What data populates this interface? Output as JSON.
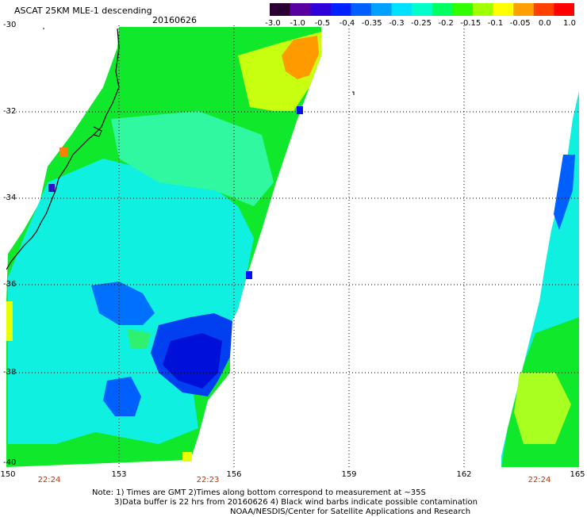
{
  "title": "ASCAT 25KM MLE-1 descending",
  "date": "20160626",
  "colorbar": {
    "ticks": [
      "-3.0",
      "-1.0",
      "-0.5",
      "-0.4",
      "-0.35",
      "-0.3",
      "-0.25",
      "-0.2",
      "-0.15",
      "-0.1",
      "-0.05",
      "0.0",
      "1.0"
    ],
    "colors": [
      "#2a0030",
      "#5a00a0",
      "#3000d8",
      "#0020ff",
      "#0060ff",
      "#00a0ff",
      "#00e0ff",
      "#00ffc8",
      "#00ff60",
      "#30ff00",
      "#a0ff00",
      "#ffff00",
      "#ffa000",
      "#ff4000",
      "#ff0000"
    ]
  },
  "axes": {
    "lat_labels": [
      "-30",
      "-32",
      "-34",
      "-36",
      "-38",
      "-40"
    ],
    "lon_labels": [
      "150",
      "153",
      "156",
      "159",
      "162",
      "165"
    ]
  },
  "times": [
    "22:24",
    "22:23",
    "22:24"
  ],
  "notes": {
    "line1": "Note: 1) Times are GMT 2)Times along bottom correspond to measurement at ~35S",
    "line2": "3)Data buffer is 22 hrs from 20160626 4) Black wind barbs indicate possible contamination",
    "line3": "NOAA/NESDIS/Center for Satellite Applications and Research"
  },
  "field_colors": {
    "green": "#10e82c",
    "lightgreen": "#30f870",
    "cyan": "#10f0e0",
    "teal": "#00e8b0",
    "blue": "#0060ff",
    "darkblue": "#0020e0",
    "yellow": "#e0ff00",
    "orange": "#ff9000",
    "coast": "#000000"
  }
}
